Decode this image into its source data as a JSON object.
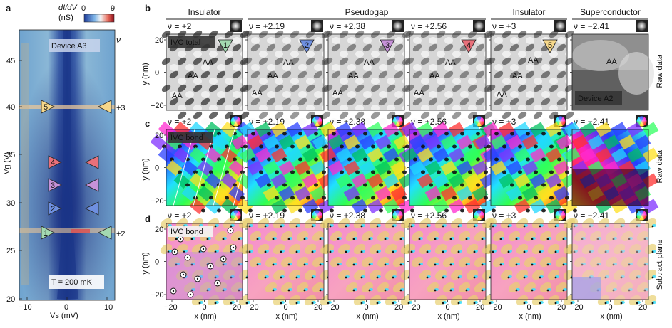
{
  "panel_a": {
    "letter": "a",
    "colorbar_title": "dI/dV",
    "colorbar_unit": "(nS)",
    "colorbar_min": "0",
    "colorbar_max": "9",
    "nu_label": "ν",
    "device": "Device A3",
    "temperature": "T = 200 mK",
    "ylabel": "Vg (V)",
    "xlabel": "Vs (mV)",
    "yticks": [
      "45",
      "40",
      "35",
      "30",
      "25",
      "20"
    ],
    "xticks": [
      "−10",
      "0",
      "10"
    ],
    "side_labels": [
      "+3",
      "+2"
    ],
    "markers": [
      "1",
      "2",
      "3",
      "4",
      "5"
    ],
    "marker_colors": [
      "#a3d9b1",
      "#6e8fe0",
      "#c792d9",
      "#e8707a",
      "#f5d78a"
    ]
  },
  "row_letters": [
    "b",
    "c",
    "d"
  ],
  "column_groups": [
    "Insulator",
    "Pseudogap",
    "Insulator",
    "Superconductor"
  ],
  "columns": [
    {
      "nu": "ν = +2",
      "marker": "1"
    },
    {
      "nu": "ν = +2.19",
      "marker": "2"
    },
    {
      "nu": "ν = +2.38",
      "marker": "3"
    },
    {
      "nu": "ν = +2.56",
      "marker": "4"
    },
    {
      "nu": "ν = +3",
      "marker": "5"
    },
    {
      "nu": "ν = −2.41",
      "marker": ""
    }
  ],
  "row_side_labels": [
    "Raw data",
    "Raw data",
    "Subtract plane"
  ],
  "map_labels": [
    "IVC total",
    "IVC bond",
    "IVC bond"
  ],
  "aa_label": "AA",
  "device_b": "Device A2",
  "y_axis_label": "y (nm)",
  "x_axis_label": "x (nm)",
  "y_ticks": [
    "20",
    "0",
    "−20"
  ],
  "x_ticks": [
    "−20",
    "0",
    "20"
  ],
  "x_ticks_first": [
    "−20",
    "0",
    "20"
  ]
}
